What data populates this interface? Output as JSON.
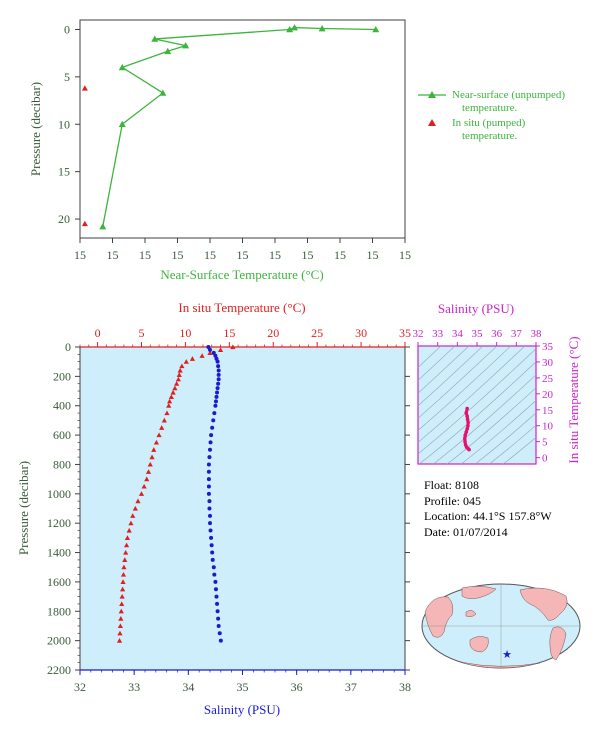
{
  "chart_data": [
    {
      "type": "line",
      "xlabel": "Near-Surface Temperature (°C)",
      "ylabel": "Pressure (decibar)",
      "xlim": [
        0,
        10
      ],
      "ylim": [
        22,
        -1
      ],
      "xtick_labels": [
        "15",
        "15",
        "15",
        "15",
        "15",
        "15",
        "15",
        "15",
        "15",
        "15",
        "15"
      ],
      "yticks": [
        0,
        5,
        10,
        15,
        20
      ],
      "legend_position": "right",
      "series": [
        {
          "name": "Near-surface (unpumped) temperature.",
          "color": "#3cb53c",
          "marker": "triangle",
          "points": [
            {
              "x": 9.1,
              "y": 0.0
            },
            {
              "x": 7.45,
              "y": -0.1
            },
            {
              "x": 6.6,
              "y": -0.2
            },
            {
              "x": 6.45,
              "y": 0.0
            },
            {
              "x": 2.3,
              "y": 1.0
            },
            {
              "x": 3.25,
              "y": 1.7
            },
            {
              "x": 2.7,
              "y": 2.3
            },
            {
              "x": 1.3,
              "y": 4.0
            },
            {
              "x": 2.55,
              "y": 6.7
            },
            {
              "x": 1.3,
              "y": 10.0
            },
            {
              "x": 0.7,
              "y": 20.8
            }
          ]
        },
        {
          "name": "In situ (pumped) temperature.",
          "color": "#e02020",
          "marker": "triangle",
          "points": [
            {
              "x": 0.15,
              "y": 6.2
            },
            {
              "x": 0.15,
              "y": 20.5
            }
          ]
        }
      ]
    },
    {
      "type": "scatter",
      "x_top_label": "In situ Temperature (°C)",
      "x_bottom_label": "Salinity (PSU)",
      "ylabel": "Pressure (decibar)",
      "temperature_lim": [
        -2,
        35
      ],
      "salinity_lim": [
        32,
        38
      ],
      "ylim": [
        2200,
        0
      ],
      "temperature_ticks": [
        0,
        5,
        10,
        15,
        20,
        25,
        30,
        35
      ],
      "salinity_ticks": [
        32,
        33,
        34,
        35,
        36,
        37,
        38
      ],
      "pressure_ticks": [
        0,
        200,
        400,
        600,
        800,
        1000,
        1200,
        1400,
        1600,
        1800,
        2000,
        2200
      ],
      "series": [
        {
          "name": "In situ Temperature (°C)",
          "color": "#e02020",
          "marker": "triangle",
          "points": [
            [
              15.4,
              0
            ],
            [
              14.0,
              20
            ],
            [
              12.8,
              40
            ],
            [
              11.9,
              60
            ],
            [
              10.8,
              80
            ],
            [
              10.1,
              100
            ],
            [
              9.6,
              130
            ],
            [
              9.4,
              160
            ],
            [
              9.3,
              190
            ],
            [
              9.2,
              220
            ],
            [
              9.0,
              250
            ],
            [
              8.8,
              280
            ],
            [
              8.6,
              310
            ],
            [
              8.4,
              340
            ],
            [
              8.2,
              370
            ],
            [
              8.1,
              400
            ],
            [
              7.9,
              450
            ],
            [
              7.6,
              500
            ],
            [
              7.3,
              550
            ],
            [
              7.0,
              600
            ],
            [
              6.7,
              650
            ],
            [
              6.4,
              700
            ],
            [
              6.2,
              750
            ],
            [
              6.0,
              800
            ],
            [
              5.8,
              850
            ],
            [
              5.6,
              900
            ],
            [
              5.3,
              950
            ],
            [
              5.0,
              1000
            ],
            [
              4.6,
              1050
            ],
            [
              4.3,
              1100
            ],
            [
              4.0,
              1150
            ],
            [
              3.8,
              1200
            ],
            [
              3.6,
              1250
            ],
            [
              3.4,
              1300
            ],
            [
              3.3,
              1350
            ],
            [
              3.2,
              1400
            ],
            [
              3.1,
              1450
            ],
            [
              3.0,
              1500
            ],
            [
              2.95,
              1550
            ],
            [
              2.9,
              1600
            ],
            [
              2.85,
              1650
            ],
            [
              2.8,
              1700
            ],
            [
              2.75,
              1750
            ],
            [
              2.7,
              1800
            ],
            [
              2.65,
              1850
            ],
            [
              2.6,
              1900
            ],
            [
              2.55,
              1950
            ],
            [
              2.5,
              2000
            ]
          ]
        },
        {
          "name": "Salinity (PSU)",
          "color": "#1a1ad0",
          "marker": "circle",
          "points": [
            [
              34.37,
              0
            ],
            [
              34.4,
              20
            ],
            [
              34.47,
              40
            ],
            [
              34.5,
              60
            ],
            [
              34.52,
              80
            ],
            [
              34.54,
              100
            ],
            [
              34.55,
              130
            ],
            [
              34.56,
              160
            ],
            [
              34.56,
              190
            ],
            [
              34.56,
              220
            ],
            [
              34.55,
              250
            ],
            [
              34.54,
              280
            ],
            [
              34.53,
              310
            ],
            [
              34.52,
              340
            ],
            [
              34.51,
              370
            ],
            [
              34.5,
              400
            ],
            [
              34.48,
              450
            ],
            [
              34.46,
              500
            ],
            [
              34.44,
              550
            ],
            [
              34.42,
              600
            ],
            [
              34.41,
              650
            ],
            [
              34.4,
              700
            ],
            [
              34.39,
              750
            ],
            [
              34.38,
              800
            ],
            [
              34.38,
              850
            ],
            [
              34.38,
              900
            ],
            [
              34.38,
              950
            ],
            [
              34.38,
              1000
            ],
            [
              34.39,
              1050
            ],
            [
              34.39,
              1100
            ],
            [
              34.4,
              1150
            ],
            [
              34.4,
              1200
            ],
            [
              34.41,
              1250
            ],
            [
              34.42,
              1300
            ],
            [
              34.43,
              1350
            ],
            [
              34.44,
              1400
            ],
            [
              34.45,
              1450
            ],
            [
              34.47,
              1500
            ],
            [
              34.48,
              1550
            ],
            [
              34.5,
              1600
            ],
            [
              34.51,
              1650
            ],
            [
              34.52,
              1700
            ],
            [
              34.53,
              1750
            ],
            [
              34.54,
              1800
            ],
            [
              34.55,
              1850
            ],
            [
              34.56,
              1900
            ],
            [
              34.58,
              1950
            ],
            [
              34.6,
              2000
            ]
          ]
        }
      ]
    },
    {
      "type": "scatter",
      "title": "Salinity (PSU)",
      "xlabel": "",
      "ylabel": "In situ Temperature (°C)",
      "xlim": [
        32,
        38
      ],
      "ylim": [
        -2,
        35
      ],
      "xticks": [
        32,
        33,
        34,
        35,
        36,
        37,
        38
      ],
      "yticks": [
        0,
        5,
        10,
        15,
        20,
        25,
        30,
        35
      ],
      "color": "#e8106e",
      "points": [
        [
          34.5,
          15.4
        ],
        [
          34.45,
          14.0
        ],
        [
          34.5,
          13.0
        ],
        [
          34.52,
          12.0
        ],
        [
          34.55,
          11.0
        ],
        [
          34.54,
          10.0
        ],
        [
          34.5,
          9.0
        ],
        [
          34.45,
          8.0
        ],
        [
          34.4,
          7.0
        ],
        [
          34.38,
          6.0
        ],
        [
          34.39,
          5.0
        ],
        [
          34.42,
          4.0
        ],
        [
          34.47,
          3.3
        ],
        [
          34.55,
          2.8
        ],
        [
          34.6,
          2.5
        ]
      ]
    }
  ],
  "float_info": {
    "float": "Float:  8108",
    "profile": "Profile:  045",
    "location": "Location:  44.1°S  157.8°W",
    "date": "Date:  01/07/2014"
  },
  "map": {
    "marker_color": "#1a1ad0",
    "ocean_color": "#cdeefa",
    "land_color": "#f4b6b6"
  },
  "colors": {
    "green": "#3cb53c",
    "red": "#e02020",
    "blue": "#1a1ad0",
    "magenta": "#cc22cc",
    "plot_bg": "#cdeefa"
  }
}
